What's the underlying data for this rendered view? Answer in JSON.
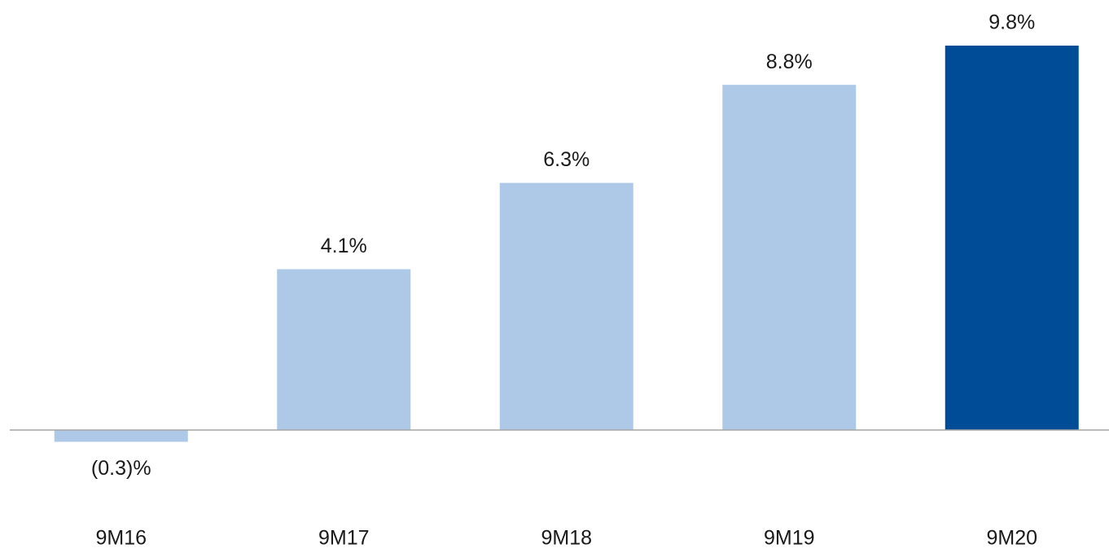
{
  "chart_data": {
    "type": "bar",
    "categories": [
      "9M16",
      "9M17",
      "9M18",
      "9M19",
      "9M20"
    ],
    "values": [
      -0.3,
      4.1,
      6.3,
      8.8,
      9.8
    ],
    "value_labels": [
      "(0.3)%",
      "4.1%",
      "6.3%",
      "8.8%",
      "9.8%"
    ],
    "colors": [
      "#aec8e8",
      "#aec8e8",
      "#aec8e8",
      "#aec8e8",
      "#004c97"
    ]
  }
}
